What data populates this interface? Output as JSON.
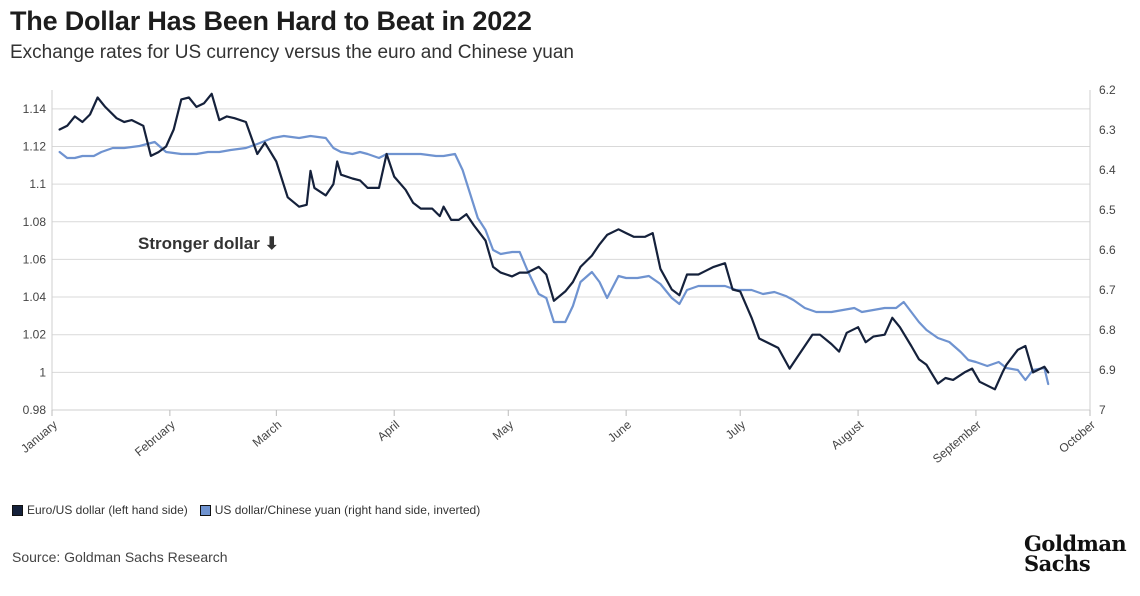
{
  "header": {
    "title": "The Dollar Has Been Hard to Beat in 2022",
    "subtitle": "Exchange rates for US currency versus the euro and Chinese yuan"
  },
  "footer": {
    "source": "Source: Goldman Sachs Research",
    "logo_line1": "Goldman",
    "logo_line2": "Sachs"
  },
  "colors": {
    "euro_series": "#15213b",
    "yuan_series": "#6f93d0",
    "grid": "#d9d9d9",
    "axis_text": "#444444"
  },
  "chart_data": {
    "type": "line",
    "title": "The Dollar Has Been Hard to Beat in 2022",
    "subtitle": "Exchange rates for US currency versus the euro and Chinese yuan",
    "x_axis": {
      "type": "time",
      "range": [
        "2022-01-01",
        "2022-10-01"
      ],
      "tick_labels": [
        "January",
        "February",
        "March",
        "April",
        "May",
        "June",
        "July",
        "August",
        "September",
        "October"
      ]
    },
    "y_left": {
      "range": [
        0.98,
        1.15
      ],
      "ticks": [
        0.98,
        1,
        1.02,
        1.04,
        1.06,
        1.08,
        1.1,
        1.12,
        1.14
      ],
      "tick_labels": [
        "0.98",
        "1",
        "1.02",
        "1.04",
        "1.06",
        "1.08",
        "1.1",
        "1.12",
        "1.14"
      ]
    },
    "y_right": {
      "range": [
        6.2,
        7.0
      ],
      "inverted": true,
      "ticks": [
        6.2,
        6.3,
        6.4,
        6.5,
        6.6,
        6.7,
        6.8,
        6.9,
        7.0
      ],
      "tick_labels": [
        "6.2",
        "6.3",
        "6.4",
        "6.5",
        "6.6",
        "6.7",
        "6.8",
        "6.9",
        "7"
      ]
    },
    "grid": "horizontal",
    "legend_position": "bottom-left",
    "annotation": "Stronger dollar ⬇",
    "series": [
      {
        "name": "Euro/US dollar (left hand side)",
        "axis": "left",
        "points": [
          [
            "2022-01-03",
            1.129
          ],
          [
            "2022-01-05",
            1.131
          ],
          [
            "2022-01-07",
            1.136
          ],
          [
            "2022-01-09",
            1.133
          ],
          [
            "2022-01-11",
            1.137
          ],
          [
            "2022-01-13",
            1.146
          ],
          [
            "2022-01-15",
            1.141
          ],
          [
            "2022-01-18",
            1.135
          ],
          [
            "2022-01-20",
            1.133
          ],
          [
            "2022-01-22",
            1.134
          ],
          [
            "2022-01-25",
            1.131
          ],
          [
            "2022-01-27",
            1.115
          ],
          [
            "2022-01-29",
            1.117
          ],
          [
            "2022-01-31",
            1.12
          ],
          [
            "2022-02-02",
            1.129
          ],
          [
            "2022-02-04",
            1.145
          ],
          [
            "2022-02-06",
            1.146
          ],
          [
            "2022-02-08",
            1.141
          ],
          [
            "2022-02-10",
            1.143
          ],
          [
            "2022-02-12",
            1.148
          ],
          [
            "2022-02-14",
            1.134
          ],
          [
            "2022-02-16",
            1.136
          ],
          [
            "2022-02-18",
            1.135
          ],
          [
            "2022-02-21",
            1.133
          ],
          [
            "2022-02-24",
            1.116
          ],
          [
            "2022-02-26",
            1.122
          ],
          [
            "2022-03-01",
            1.112
          ],
          [
            "2022-03-04",
            1.093
          ],
          [
            "2022-03-07",
            1.088
          ],
          [
            "2022-03-09",
            1.089
          ],
          [
            "2022-03-10",
            1.107
          ],
          [
            "2022-03-11",
            1.098
          ],
          [
            "2022-03-14",
            1.094
          ],
          [
            "2022-03-16",
            1.1
          ],
          [
            "2022-03-17",
            1.112
          ],
          [
            "2022-03-18",
            1.105
          ],
          [
            "2022-03-21",
            1.103
          ],
          [
            "2022-03-23",
            1.102
          ],
          [
            "2022-03-25",
            1.098
          ],
          [
            "2022-03-28",
            1.098
          ],
          [
            "2022-03-30",
            1.116
          ],
          [
            "2022-04-01",
            1.104
          ],
          [
            "2022-04-04",
            1.097
          ],
          [
            "2022-04-06",
            1.09
          ],
          [
            "2022-04-08",
            1.087
          ],
          [
            "2022-04-11",
            1.087
          ],
          [
            "2022-04-13",
            1.083
          ],
          [
            "2022-04-14",
            1.088
          ],
          [
            "2022-04-16",
            1.081
          ],
          [
            "2022-04-18",
            1.081
          ],
          [
            "2022-04-20",
            1.084
          ],
          [
            "2022-04-22",
            1.078
          ],
          [
            "2022-04-25",
            1.07
          ],
          [
            "2022-04-27",
            1.056
          ],
          [
            "2022-04-29",
            1.053
          ],
          [
            "2022-05-02",
            1.051
          ],
          [
            "2022-05-04",
            1.053
          ],
          [
            "2022-05-06",
            1.053
          ],
          [
            "2022-05-09",
            1.056
          ],
          [
            "2022-05-11",
            1.052
          ],
          [
            "2022-05-13",
            1.038
          ],
          [
            "2022-05-16",
            1.043
          ],
          [
            "2022-05-18",
            1.048
          ],
          [
            "2022-05-20",
            1.056
          ],
          [
            "2022-05-23",
            1.062
          ],
          [
            "2022-05-25",
            1.068
          ],
          [
            "2022-05-27",
            1.073
          ],
          [
            "2022-05-30",
            1.076
          ],
          [
            "2022-06-01",
            1.074
          ],
          [
            "2022-06-03",
            1.072
          ],
          [
            "2022-06-06",
            1.072
          ],
          [
            "2022-06-08",
            1.074
          ],
          [
            "2022-06-10",
            1.055
          ],
          [
            "2022-06-13",
            1.044
          ],
          [
            "2022-06-15",
            1.041
          ],
          [
            "2022-06-17",
            1.052
          ],
          [
            "2022-06-20",
            1.052
          ],
          [
            "2022-06-22",
            1.054
          ],
          [
            "2022-06-24",
            1.056
          ],
          [
            "2022-06-27",
            1.058
          ],
          [
            "2022-06-29",
            1.044
          ],
          [
            "2022-07-01",
            1.043
          ],
          [
            "2022-07-04",
            1.029
          ],
          [
            "2022-07-06",
            1.018
          ],
          [
            "2022-07-08",
            1.016
          ],
          [
            "2022-07-11",
            1.013
          ],
          [
            "2022-07-14",
            1.002
          ],
          [
            "2022-07-16",
            1.008
          ],
          [
            "2022-07-18",
            1.014
          ],
          [
            "2022-07-20",
            1.02
          ],
          [
            "2022-07-22",
            1.02
          ],
          [
            "2022-07-25",
            1.015
          ],
          [
            "2022-07-27",
            1.011
          ],
          [
            "2022-07-29",
            1.021
          ],
          [
            "2022-08-01",
            1.024
          ],
          [
            "2022-08-03",
            1.016
          ],
          [
            "2022-08-05",
            1.019
          ],
          [
            "2022-08-08",
            1.02
          ],
          [
            "2022-08-10",
            1.029
          ],
          [
            "2022-08-12",
            1.024
          ],
          [
            "2022-08-15",
            1.014
          ],
          [
            "2022-08-17",
            1.007
          ],
          [
            "2022-08-19",
            1.004
          ],
          [
            "2022-08-22",
            0.994
          ],
          [
            "2022-08-24",
            0.997
          ],
          [
            "2022-08-26",
            0.996
          ],
          [
            "2022-08-29",
            1.0
          ],
          [
            "2022-08-31",
            1.002
          ],
          [
            "2022-09-02",
            0.995
          ],
          [
            "2022-09-06",
            0.991
          ],
          [
            "2022-09-08",
            1.0
          ],
          [
            "2022-09-09",
            1.004
          ],
          [
            "2022-09-12",
            1.012
          ],
          [
            "2022-09-14",
            1.014
          ],
          [
            "2022-09-16",
            1.0
          ],
          [
            "2022-09-19",
            1.003
          ],
          [
            "2022-09-20",
            1.0
          ]
        ]
      },
      {
        "name": "US dollar/Chinese yuan (right hand side, inverted)",
        "axis": "right",
        "points": [
          [
            "2022-01-03",
            6.355
          ],
          [
            "2022-01-05",
            6.37
          ],
          [
            "2022-01-07",
            6.37
          ],
          [
            "2022-01-09",
            6.365
          ],
          [
            "2022-01-12",
            6.365
          ],
          [
            "2022-01-14",
            6.355
          ],
          [
            "2022-01-17",
            6.345
          ],
          [
            "2022-01-20",
            6.345
          ],
          [
            "2022-01-24",
            6.34
          ],
          [
            "2022-01-26",
            6.335
          ],
          [
            "2022-01-28",
            6.33
          ],
          [
            "2022-01-31",
            6.355
          ],
          [
            "2022-02-04",
            6.36
          ],
          [
            "2022-02-08",
            6.36
          ],
          [
            "2022-02-11",
            6.355
          ],
          [
            "2022-02-14",
            6.355
          ],
          [
            "2022-02-17",
            6.35
          ],
          [
            "2022-02-21",
            6.345
          ],
          [
            "2022-02-24",
            6.335
          ],
          [
            "2022-02-28",
            6.32
          ],
          [
            "2022-03-03",
            6.315
          ],
          [
            "2022-03-07",
            6.32
          ],
          [
            "2022-03-10",
            6.315
          ],
          [
            "2022-03-14",
            6.32
          ],
          [
            "2022-03-16",
            6.345
          ],
          [
            "2022-03-18",
            6.355
          ],
          [
            "2022-03-21",
            6.36
          ],
          [
            "2022-03-23",
            6.355
          ],
          [
            "2022-03-25",
            6.36
          ],
          [
            "2022-03-28",
            6.37
          ],
          [
            "2022-03-30",
            6.36
          ],
          [
            "2022-04-01",
            6.36
          ],
          [
            "2022-04-04",
            6.36
          ],
          [
            "2022-04-08",
            6.36
          ],
          [
            "2022-04-12",
            6.365
          ],
          [
            "2022-04-14",
            6.365
          ],
          [
            "2022-04-17",
            6.36
          ],
          [
            "2022-04-19",
            6.4
          ],
          [
            "2022-04-21",
            6.46
          ],
          [
            "2022-04-23",
            6.52
          ],
          [
            "2022-04-25",
            6.55
          ],
          [
            "2022-04-27",
            6.6
          ],
          [
            "2022-04-29",
            6.61
          ],
          [
            "2022-05-02",
            6.605
          ],
          [
            "2022-05-04",
            6.605
          ],
          [
            "2022-05-06",
            6.65
          ],
          [
            "2022-05-09",
            6.71
          ],
          [
            "2022-05-11",
            6.72
          ],
          [
            "2022-05-13",
            6.78
          ],
          [
            "2022-05-16",
            6.78
          ],
          [
            "2022-05-18",
            6.74
          ],
          [
            "2022-05-20",
            6.68
          ],
          [
            "2022-05-23",
            6.655
          ],
          [
            "2022-05-25",
            6.68
          ],
          [
            "2022-05-27",
            6.72
          ],
          [
            "2022-05-30",
            6.665
          ],
          [
            "2022-06-01",
            6.67
          ],
          [
            "2022-06-04",
            6.67
          ],
          [
            "2022-06-07",
            6.665
          ],
          [
            "2022-06-10",
            6.685
          ],
          [
            "2022-06-13",
            6.72
          ],
          [
            "2022-06-15",
            6.735
          ],
          [
            "2022-06-17",
            6.7
          ],
          [
            "2022-06-20",
            6.69
          ],
          [
            "2022-06-23",
            6.69
          ],
          [
            "2022-06-27",
            6.69
          ],
          [
            "2022-06-30",
            6.7
          ],
          [
            "2022-07-04",
            6.7
          ],
          [
            "2022-07-07",
            6.71
          ],
          [
            "2022-07-10",
            6.705
          ],
          [
            "2022-07-13",
            6.715
          ],
          [
            "2022-07-15",
            6.725
          ],
          [
            "2022-07-18",
            6.745
          ],
          [
            "2022-07-21",
            6.755
          ],
          [
            "2022-07-25",
            6.755
          ],
          [
            "2022-07-28",
            6.75
          ],
          [
            "2022-07-31",
            6.745
          ],
          [
            "2022-08-02",
            6.755
          ],
          [
            "2022-08-05",
            6.75
          ],
          [
            "2022-08-08",
            6.745
          ],
          [
            "2022-08-11",
            6.745
          ],
          [
            "2022-08-13",
            6.73
          ],
          [
            "2022-08-15",
            6.755
          ],
          [
            "2022-08-17",
            6.78
          ],
          [
            "2022-08-19",
            6.8
          ],
          [
            "2022-08-22",
            6.82
          ],
          [
            "2022-08-25",
            6.83
          ],
          [
            "2022-08-28",
            6.855
          ],
          [
            "2022-08-30",
            6.875
          ],
          [
            "2022-09-01",
            6.88
          ],
          [
            "2022-09-04",
            6.89
          ],
          [
            "2022-09-07",
            6.88
          ],
          [
            "2022-09-09",
            6.895
          ],
          [
            "2022-09-12",
            6.9
          ],
          [
            "2022-09-14",
            6.925
          ],
          [
            "2022-09-16",
            6.9
          ],
          [
            "2022-09-19",
            6.895
          ],
          [
            "2022-09-20",
            6.935
          ]
        ]
      }
    ]
  }
}
